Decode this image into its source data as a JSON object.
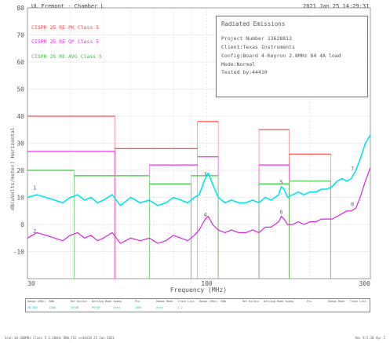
{
  "header": {
    "site": "UL Fremont - Chamber L",
    "datetime": "2021 Jan 25   14:29:31"
  },
  "info_box": {
    "title": "Radiated Emissions",
    "lines": [
      "Project Number 13628813",
      "Client:Texas Instruments",
      "Config:Board 4-Keyron 2.8MHz 64 4A load",
      "Mode:Normal",
      "Tested by:44410"
    ]
  },
  "legend": [
    {
      "label": "CISPR 25 RE PK Class 5",
      "color": "#ff4a4a"
    },
    {
      "label": "CISPR 25 RE QP Class 5",
      "color": "#ee33ee"
    },
    {
      "label": "CISPR 25 RE AVG Class 5",
      "color": "#33cc33"
    }
  ],
  "table": {
    "headers": [
      "Range (MHz)",
      "RBW",
      "Ref Hz/div",
      "Det/Avg Mode",
      "Sweep",
      "Pts",
      "RAmps Mode",
      "Trace List",
      "Range (MHz)",
      "RBW",
      "Ref Hz/div",
      "Det/Avg Mode",
      "Sweep",
      "Pts",
      "RAmps Mode",
      "Trace List"
    ],
    "values": [
      "30-300",
      "120k",
      "10/dB",
      "PK/QP",
      "Auto",
      "1000",
      "Auto",
      "1,2",
      "",
      "",
      "",
      "",
      "",
      "",
      "",
      ""
    ]
  },
  "footer": {
    "left": "Scan 30-300MHz Class 5 1:10kHz RBW,TX2 vs44410 25 Jan 2021",
    "right": "Rev 9.5.38 Apr 2"
  },
  "colors": {
    "pk_limit": "#ff4a4a",
    "qp_limit": "#ee33ee",
    "avg_limit": "#33cc33",
    "trace_peak": "#00e5ee",
    "trace_qp": "#dd22dd",
    "grid": "#dddddd"
  },
  "chart_data": {
    "type": "line",
    "xlabel": "Frequency (MHz)",
    "ylabel": "dB(uVolts/meter) Horizontal",
    "xscale": "log",
    "xlim": [
      30,
      300
    ],
    "ylim": [
      -20,
      80
    ],
    "grid": true,
    "y_ticks": [
      "80",
      "70",
      "60",
      "50",
      "40",
      "30",
      "20",
      "10",
      "0",
      "-10"
    ],
    "x_tick_labels": [
      {
        "v": 30,
        "label": "30"
      },
      {
        "v": 100,
        "label": "100"
      },
      {
        "v": 300,
        "label": "300"
      }
    ],
    "limits": [
      {
        "name": "CISPR 25 RE PK Class 5",
        "segments": [
          [
            30,
            54,
            40
          ],
          [
            54,
            94,
            28
          ],
          [
            94,
            108,
            38
          ],
          [
            142,
            174,
            35
          ],
          [
            174,
            230,
            26
          ]
        ]
      },
      {
        "name": "CISPR 25 RE QP Class 5",
        "segments": [
          [
            30,
            54,
            27
          ],
          [
            68,
            94,
            22
          ],
          [
            94,
            108,
            25
          ],
          [
            142,
            174,
            22
          ]
        ]
      },
      {
        "name": "CISPR 25 RE AVG Class 5",
        "segments": [
          [
            30,
            41,
            20
          ],
          [
            41,
            68,
            18
          ],
          [
            68,
            90,
            15
          ],
          [
            90,
            108,
            18
          ],
          [
            142,
            174,
            15
          ],
          [
            174,
            230,
            16
          ]
        ]
      }
    ],
    "series": [
      {
        "name": "Peak",
        "x": [
          30,
          32,
          34,
          36,
          38,
          40,
          42,
          44,
          46,
          48,
          50,
          53,
          56,
          60,
          64,
          68,
          72,
          76,
          80,
          84,
          88,
          92,
          95,
          97,
          99,
          101,
          104,
          108,
          113,
          118,
          124,
          130,
          136,
          142,
          148,
          154,
          158,
          162,
          165,
          168,
          172,
          178,
          185,
          192,
          200,
          208,
          216,
          224,
          232,
          240,
          248,
          256,
          264,
          272,
          280,
          290,
          300
        ],
        "y": [
          10,
          11,
          10,
          9,
          8,
          10,
          11,
          9,
          10,
          8,
          9,
          11,
          7,
          10,
          8,
          9,
          7,
          8,
          10,
          9,
          8,
          10,
          11,
          14,
          17,
          19,
          15,
          10,
          8,
          9,
          8,
          8,
          9,
          8,
          10,
          9,
          10,
          11,
          14,
          13,
          10,
          11,
          12,
          11,
          12,
          12,
          13,
          13,
          14,
          16,
          17,
          16,
          17,
          20,
          24,
          30,
          33
        ]
      },
      {
        "name": "QP",
        "x": [
          30,
          32,
          34,
          36,
          38,
          40,
          42,
          44,
          46,
          48,
          50,
          53,
          56,
          60,
          64,
          68,
          72,
          76,
          80,
          84,
          88,
          92,
          95,
          97,
          99,
          101,
          104,
          108,
          113,
          118,
          124,
          130,
          136,
          142,
          148,
          154,
          158,
          162,
          165,
          168,
          172,
          178,
          185,
          192,
          200,
          208,
          216,
          224,
          232,
          240,
          248,
          256,
          264,
          272,
          280,
          290,
          300
        ],
        "y": [
          -5,
          -3,
          -4,
          -5,
          -6,
          -4,
          -3,
          -5,
          -4,
          -6,
          -5,
          -3,
          -7,
          -5,
          -6,
          -5,
          -7,
          -6,
          -4,
          -5,
          -6,
          -4,
          -2,
          0,
          2,
          3,
          0,
          -2,
          -3,
          -2,
          -3,
          -3,
          -2,
          -3,
          -1,
          -1,
          0,
          1,
          3,
          2,
          0,
          0,
          1,
          0,
          1,
          1,
          2,
          2,
          2,
          3,
          4,
          5,
          5,
          6,
          10,
          16,
          21
        ]
      }
    ],
    "markers": [
      {
        "label": "1",
        "x": 31.5,
        "y": 12
      },
      {
        "label": "2",
        "x": 31.5,
        "y": -4
      },
      {
        "label": "3",
        "x": 99,
        "y": 17
      },
      {
        "label": "4",
        "x": 99,
        "y": 2
      },
      {
        "label": "5",
        "x": 165,
        "y": 14
      },
      {
        "label": "6",
        "x": 165,
        "y": 3
      },
      {
        "label": "7",
        "x": 266,
        "y": 19
      },
      {
        "label": "8",
        "x": 266,
        "y": 6
      }
    ]
  }
}
